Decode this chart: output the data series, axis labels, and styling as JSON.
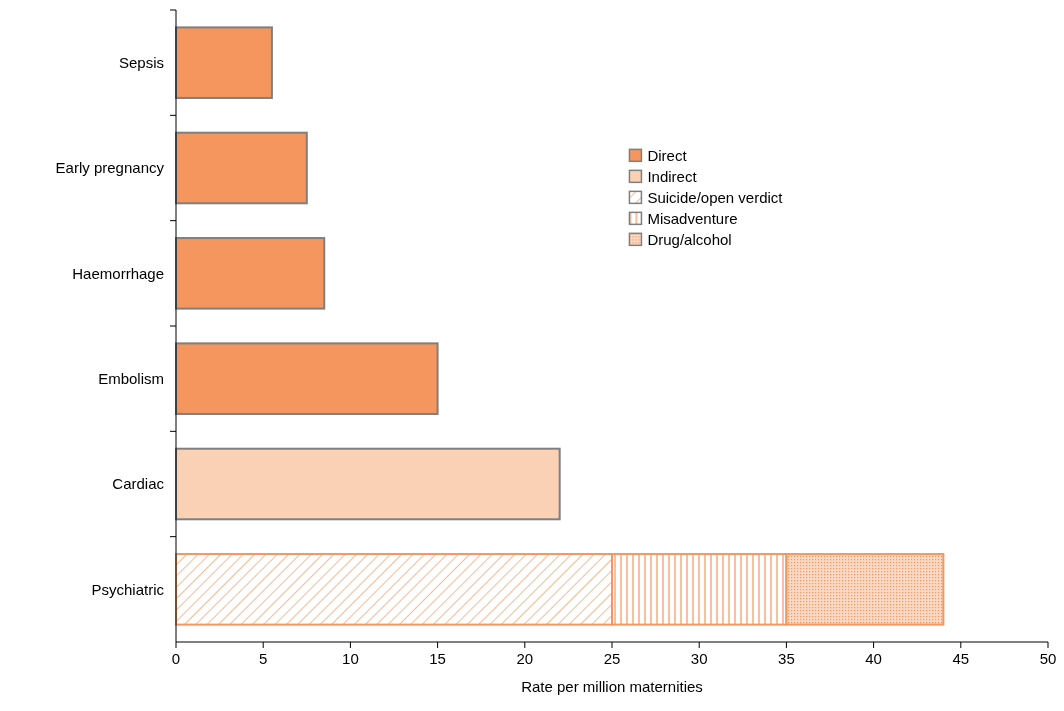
{
  "chart_data": {
    "type": "bar",
    "orientation": "horizontal",
    "stacked": true,
    "xlabel": "Rate per million maternities",
    "categories": [
      "Sepsis",
      "Early pregnancy",
      "Haemorrhage",
      "Embolism",
      "Cardiac",
      "Psychiatric"
    ],
    "series": [
      {
        "name": "Direct",
        "color": "#f4965e",
        "values": [
          5.5,
          7.5,
          8.5,
          15,
          null,
          null
        ]
      },
      {
        "name": "Indirect",
        "color": "#fad1b4",
        "values": [
          null,
          null,
          null,
          null,
          22,
          null
        ]
      },
      {
        "name": "Suicide/open verdict",
        "color": "#f4965e",
        "values": [
          null,
          null,
          null,
          null,
          null,
          25
        ]
      },
      {
        "name": "Misadventure",
        "color": "#f4965e",
        "values": [
          null,
          null,
          null,
          null,
          null,
          10
        ]
      },
      {
        "name": "Drug/alcohol",
        "color": "#f4965e",
        "values": [
          null,
          null,
          null,
          null,
          null,
          9
        ]
      }
    ],
    "xlim": [
      0,
      50
    ],
    "xticks": [
      0,
      5,
      10,
      15,
      20,
      25,
      30,
      35,
      40,
      45,
      50
    ],
    "grid": false,
    "legend": "right"
  }
}
